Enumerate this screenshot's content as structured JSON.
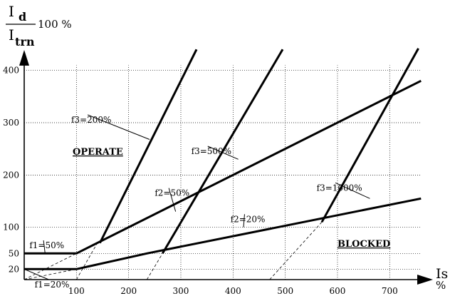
{
  "chart_data": {
    "type": "line",
    "ylabel": {
      "numerator_main": "I",
      "numerator_sub": "d",
      "denominator_main": "I",
      "denominator_sub": "trn",
      "suffix": "100 %"
    },
    "xlabel": {
      "main": "Is",
      "unit": "%"
    },
    "xlim": [
      0,
      760
    ],
    "ylim": [
      0,
      450
    ],
    "x_ticks": [
      100,
      200,
      300,
      400,
      500,
      600,
      700
    ],
    "y_ticks": [
      20,
      50,
      100,
      200,
      300,
      400
    ],
    "grid": true,
    "region_labels": {
      "operate": "OPERATE",
      "blocked": "BLOCKED"
    },
    "series": [
      {
        "name": "f1=20%",
        "points": [
          [
            0,
            20
          ],
          [
            100,
            20
          ],
          [
            235,
            50
          ],
          [
            760,
            155
          ]
        ]
      },
      {
        "name": "f1=50%",
        "points": [
          [
            0,
            50
          ],
          [
            100,
            50
          ],
          [
            760,
            380
          ]
        ]
      },
      {
        "name": "f3=200%",
        "points": [
          [
            145,
            70
          ],
          [
            330,
            440
          ]
        ]
      },
      {
        "name": "f3=500%",
        "points": [
          [
            265,
            50
          ],
          [
            495,
            440
          ]
        ]
      },
      {
        "name": "f3=1000%",
        "points": [
          [
            570,
            110
          ],
          [
            755,
            442
          ]
        ]
      }
    ],
    "annotations": [
      {
        "text": "f1=20%",
        "at": [
          20,
          -15
        ],
        "leader_to": [
          0,
          20
        ]
      },
      {
        "text": "f1=50%",
        "at": [
          10,
          60
        ],
        "leader_to": [
          40,
          50
        ]
      },
      {
        "text": "f3=200%",
        "at": [
          90,
          300
        ],
        "leader_to": [
          240,
          268
        ]
      },
      {
        "text": "f3=500%",
        "at": [
          320,
          240
        ],
        "leader_to": [
          410,
          230
        ]
      },
      {
        "text": "f3=1000%",
        "at": [
          560,
          170
        ],
        "leader_to": [
          662,
          155
        ]
      },
      {
        "text": "f2=50%",
        "at": [
          250,
          160
        ],
        "leader_to": [
          290,
          130
        ]
      },
      {
        "text": "f2=20%",
        "at": [
          395,
          110
        ],
        "leader_to": [
          420,
          100
        ]
      }
    ],
    "extensions": [
      [
        [
          0,
          0
        ],
        [
          100,
          20
        ]
      ],
      [
        [
          0,
          0
        ],
        [
          100,
          50
        ]
      ],
      [
        [
          100,
          0
        ],
        [
          140,
          70
        ]
      ],
      [
        [
          235,
          0
        ],
        [
          265,
          50
        ]
      ],
      [
        [
          470,
          0
        ],
        [
          570,
          110
        ]
      ]
    ]
  }
}
